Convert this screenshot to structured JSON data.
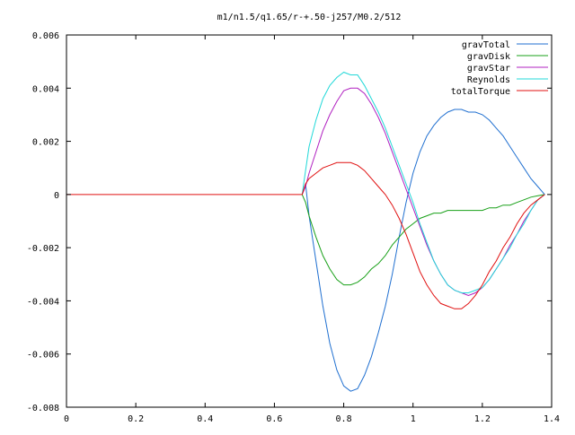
{
  "chart_data": {
    "type": "line",
    "title": "m1/n1.5/q1.65/r-+.50-j257/M0.2/512",
    "xlabel": "",
    "ylabel": "",
    "xlim": [
      0,
      1.4
    ],
    "ylim": [
      -0.008,
      0.006
    ],
    "grid": false,
    "legend_position": "top-right",
    "xticks": [
      {
        "value": 0,
        "label": "0"
      },
      {
        "value": 0.2,
        "label": "0.2"
      },
      {
        "value": 0.4,
        "label": "0.4"
      },
      {
        "value": 0.6,
        "label": "0.6"
      },
      {
        "value": 0.8,
        "label": "0.8"
      },
      {
        "value": 1.0,
        "label": "1"
      },
      {
        "value": 1.2,
        "label": "1.2"
      },
      {
        "value": 1.4,
        "label": "1.4"
      }
    ],
    "yticks": [
      {
        "value": -0.008,
        "label": "-0.008"
      },
      {
        "value": -0.006,
        "label": "-0.006"
      },
      {
        "value": -0.004,
        "label": "-0.004"
      },
      {
        "value": -0.002,
        "label": "-0.002"
      },
      {
        "value": 0,
        "label": "0"
      },
      {
        "value": 0.002,
        "label": "0.002"
      },
      {
        "value": 0.004,
        "label": "0.004"
      },
      {
        "value": 0.006,
        "label": "0.006"
      }
    ],
    "series": [
      {
        "name": "gravTotal",
        "color": "#1f6fd0",
        "x": [
          0.68,
          0.69,
          0.7,
          0.72,
          0.74,
          0.76,
          0.78,
          0.8,
          0.82,
          0.84,
          0.86,
          0.88,
          0.9,
          0.92,
          0.94,
          0.96,
          0.98,
          1.0,
          1.02,
          1.04,
          1.06,
          1.08,
          1.1,
          1.12,
          1.14,
          1.16,
          1.18,
          1.2,
          1.22,
          1.24,
          1.26,
          1.28,
          1.3,
          1.32,
          1.34,
          1.36,
          1.38
        ],
        "y": [
          0.0,
          0.0004,
          -0.0008,
          -0.0025,
          -0.0042,
          -0.0056,
          -0.0066,
          -0.0072,
          -0.0074,
          -0.0073,
          -0.0068,
          -0.0061,
          -0.0052,
          -0.0042,
          -0.003,
          -0.0016,
          -0.0003,
          0.0008,
          0.0016,
          0.0022,
          0.0026,
          0.0029,
          0.0031,
          0.0032,
          0.0032,
          0.0031,
          0.0031,
          0.003,
          0.0028,
          0.0025,
          0.0022,
          0.0018,
          0.0014,
          0.001,
          0.0006,
          0.0003,
          0.0
        ]
      },
      {
        "name": "gravDisk",
        "color": "#18a018",
        "x": [
          0.68,
          0.69,
          0.7,
          0.72,
          0.74,
          0.76,
          0.78,
          0.8,
          0.82,
          0.84,
          0.86,
          0.88,
          0.9,
          0.92,
          0.94,
          0.96,
          0.98,
          1.0,
          1.02,
          1.04,
          1.06,
          1.08,
          1.1,
          1.12,
          1.14,
          1.16,
          1.18,
          1.2,
          1.22,
          1.24,
          1.26,
          1.28,
          1.3,
          1.32,
          1.34,
          1.36,
          1.38
        ],
        "y": [
          0.0,
          -0.0003,
          -0.0008,
          -0.0016,
          -0.0023,
          -0.0028,
          -0.0032,
          -0.0034,
          -0.0034,
          -0.0033,
          -0.0031,
          -0.0028,
          -0.0026,
          -0.0023,
          -0.0019,
          -0.0016,
          -0.0013,
          -0.0011,
          -0.0009,
          -0.0008,
          -0.0007,
          -0.0007,
          -0.0006,
          -0.0006,
          -0.0006,
          -0.0006,
          -0.0006,
          -0.0006,
          -0.0005,
          -0.0005,
          -0.0004,
          -0.0004,
          -0.0003,
          -0.0002,
          -0.0001,
          -5e-05,
          0.0
        ]
      },
      {
        "name": "gravStar",
        "color": "#b020c0",
        "x": [
          0.68,
          0.69,
          0.7,
          0.72,
          0.74,
          0.76,
          0.78,
          0.8,
          0.82,
          0.84,
          0.86,
          0.88,
          0.9,
          0.92,
          0.94,
          0.96,
          0.98,
          1.0,
          1.02,
          1.04,
          1.06,
          1.08,
          1.1,
          1.12,
          1.14,
          1.16,
          1.18,
          1.2,
          1.22,
          1.24,
          1.26,
          1.28,
          1.3,
          1.32,
          1.34,
          1.36,
          1.38
        ],
        "y": [
          0.0,
          0.0003,
          0.0008,
          0.0016,
          0.0024,
          0.003,
          0.0035,
          0.0039,
          0.004,
          0.004,
          0.0038,
          0.0034,
          0.0029,
          0.0023,
          0.0016,
          0.0009,
          0.0002,
          -0.0005,
          -0.0012,
          -0.0019,
          -0.0025,
          -0.003,
          -0.0034,
          -0.0036,
          -0.0037,
          -0.0038,
          -0.0037,
          -0.0035,
          -0.0032,
          -0.0028,
          -0.0024,
          -0.0019,
          -0.0015,
          -0.001,
          -0.0006,
          -0.0002,
          0.0
        ]
      },
      {
        "name": "Reynolds",
        "color": "#20d8d8",
        "x": [
          0.68,
          0.69,
          0.7,
          0.72,
          0.74,
          0.76,
          0.78,
          0.8,
          0.82,
          0.84,
          0.86,
          0.88,
          0.9,
          0.92,
          0.94,
          0.96,
          0.98,
          1.0,
          1.02,
          1.04,
          1.06,
          1.08,
          1.1,
          1.12,
          1.14,
          1.16,
          1.18,
          1.2,
          1.22,
          1.24,
          1.26,
          1.28,
          1.3,
          1.32,
          1.34,
          1.36,
          1.38
        ],
        "y": [
          0.0,
          0.0009,
          0.0018,
          0.0028,
          0.0036,
          0.0041,
          0.0044,
          0.0046,
          0.0045,
          0.0045,
          0.0041,
          0.0036,
          0.0031,
          0.0025,
          0.0018,
          0.0011,
          0.0004,
          -0.0003,
          -0.0011,
          -0.0018,
          -0.0025,
          -0.003,
          -0.0034,
          -0.0036,
          -0.0037,
          -0.0037,
          -0.0036,
          -0.0035,
          -0.0032,
          -0.0028,
          -0.0024,
          -0.002,
          -0.0015,
          -0.0011,
          -0.0006,
          -0.0002,
          0.0
        ]
      },
      {
        "name": "totalTorque",
        "color": "#e01010",
        "x": [
          0.0,
          0.68,
          0.69,
          0.7,
          0.72,
          0.74,
          0.76,
          0.78,
          0.8,
          0.82,
          0.84,
          0.86,
          0.88,
          0.9,
          0.92,
          0.94,
          0.96,
          0.98,
          1.0,
          1.02,
          1.04,
          1.06,
          1.08,
          1.1,
          1.12,
          1.14,
          1.16,
          1.18,
          1.2,
          1.22,
          1.24,
          1.26,
          1.28,
          1.3,
          1.32,
          1.34,
          1.36,
          1.38
        ],
        "y": [
          0.0,
          0.0,
          0.0004,
          0.0006,
          0.0008,
          0.001,
          0.0011,
          0.0012,
          0.0012,
          0.0012,
          0.0011,
          0.0009,
          0.0006,
          0.0003,
          0.0,
          -0.0004,
          -0.0009,
          -0.0015,
          -0.0022,
          -0.0029,
          -0.0034,
          -0.0038,
          -0.0041,
          -0.0042,
          -0.0043,
          -0.0043,
          -0.0041,
          -0.0038,
          -0.0034,
          -0.0029,
          -0.0025,
          -0.002,
          -0.0016,
          -0.0011,
          -0.0007,
          -0.0004,
          -0.0002,
          0.0
        ]
      }
    ]
  }
}
